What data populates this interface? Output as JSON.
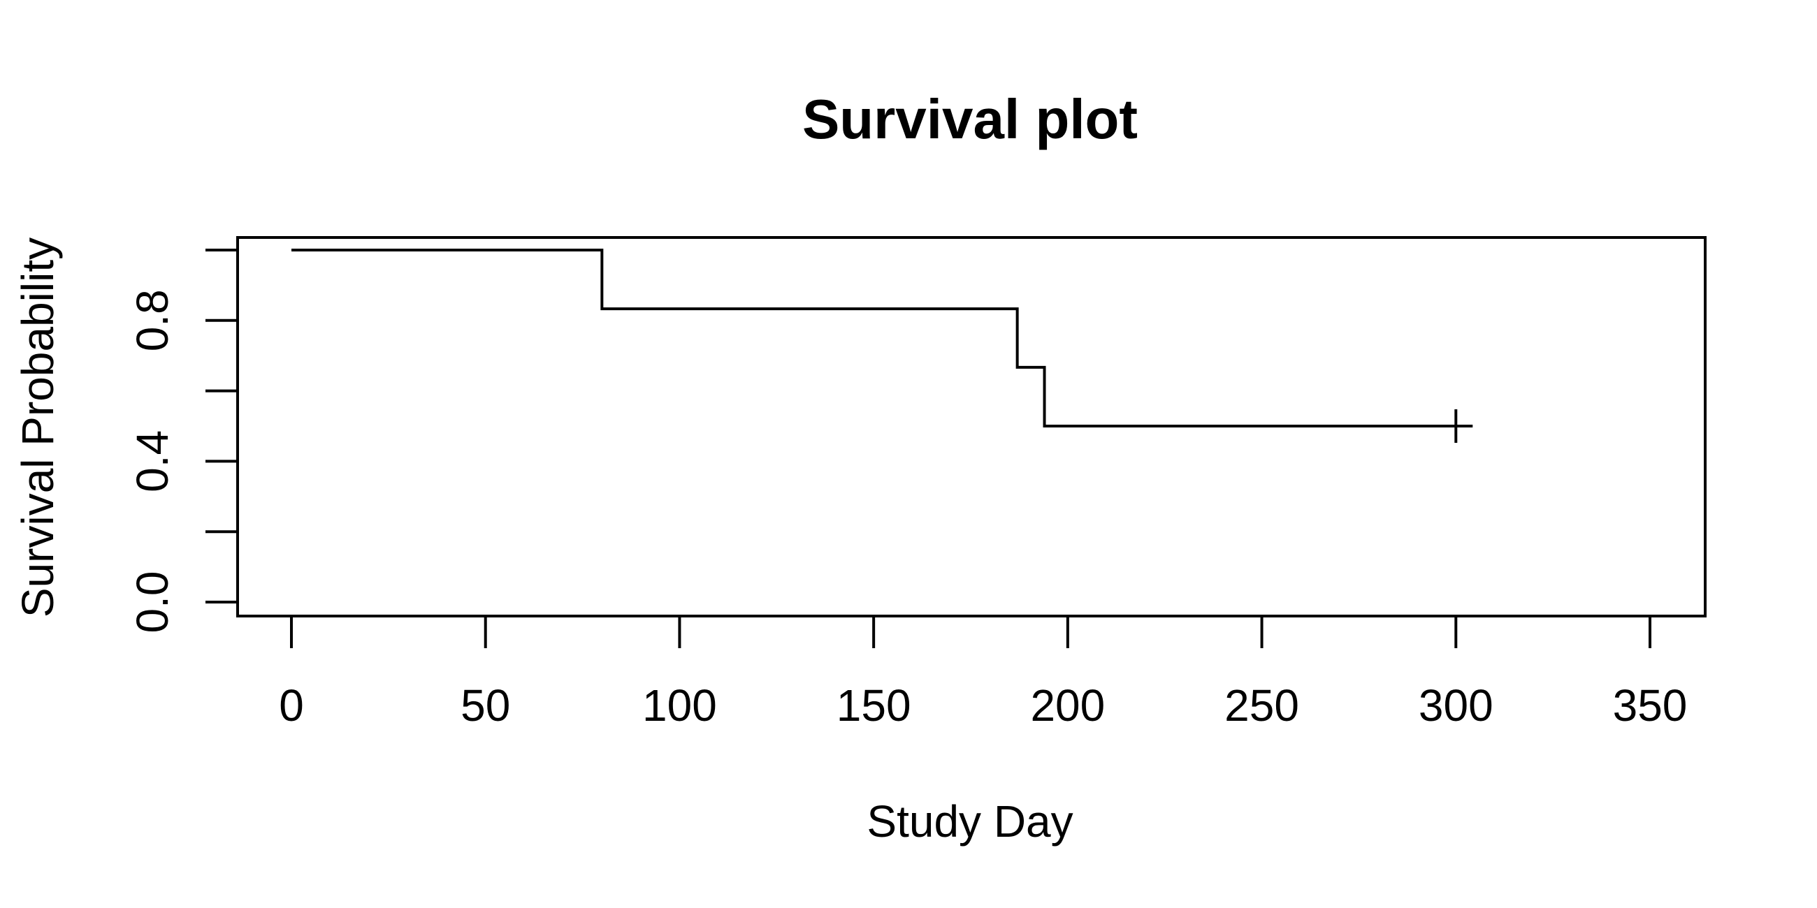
{
  "chart_data": {
    "type": "line",
    "subtype": "kaplan-meier-step",
    "title": "Survival plot",
    "xlabel": "Study Day",
    "ylabel": "Survival Probability",
    "xlim": [
      0,
      350
    ],
    "ylim": [
      0,
      1
    ],
    "x_ticks": [
      0,
      50,
      100,
      150,
      200,
      250,
      300,
      350
    ],
    "x_tick_labels": [
      "0",
      "50",
      "100",
      "150",
      "200",
      "250",
      "300",
      "350"
    ],
    "y_ticks": [
      0.0,
      0.2,
      0.4,
      0.6,
      0.8,
      1.0
    ],
    "y_tick_labels": [
      "0.0",
      "",
      "0.4",
      "",
      "0.8",
      ""
    ],
    "grid": false,
    "legend": "none",
    "line_color": "#000000",
    "series": [
      {
        "steps": [
          {
            "x": 0,
            "y": 1.0
          },
          {
            "x": 80,
            "y": 0.833
          },
          {
            "x": 187,
            "y": 0.667
          },
          {
            "x": 194,
            "y": 0.5
          }
        ],
        "end_x": 303,
        "censored": [
          {
            "x": 300,
            "y": 0.5
          }
        ]
      }
    ]
  }
}
